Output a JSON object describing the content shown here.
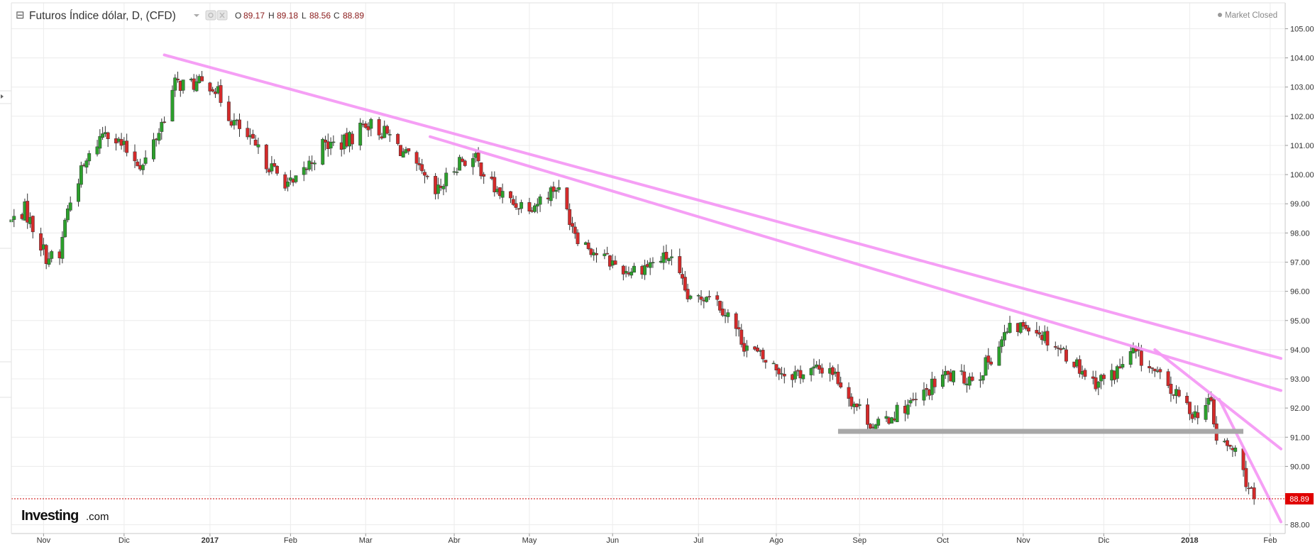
{
  "header": {
    "collapse_symbol": "⊟",
    "instrument": "Futuros Índice dólar, D, (CFD)",
    "ohlc": [
      {
        "label": "O",
        "value": "89.17"
      },
      {
        "label": "H",
        "value": "89.18"
      },
      {
        "label": "L",
        "value": "88.56"
      },
      {
        "label": "C",
        "value": "88.89"
      }
    ],
    "icons": [
      "dropdown-caret-icon",
      "settings-icon",
      "close-icon"
    ],
    "market_status": "Market Closed"
  },
  "watermark": {
    "brand": "Investing",
    "suffix": ".com"
  },
  "colors": {
    "up": "#2ca02c",
    "down": "#d42a2a",
    "wick": "#333333",
    "trendline": "#f59af5",
    "support": "#a8a8a8",
    "price_line": "#cc0000",
    "grid": "#ececec"
  },
  "chart_data": {
    "type": "candlestick",
    "title": "Futuros Índice dólar, D, (CFD)",
    "y_axis": {
      "position": "right",
      "min": 87.7,
      "max": 105.4,
      "ticks": [
        "88.00",
        "89.00",
        "90.00",
        "91.00",
        "92.00",
        "93.00",
        "94.00",
        "95.00",
        "96.00",
        "97.00",
        "98.00",
        "99.00",
        "100.00",
        "101.00",
        "102.00",
        "103.00",
        "104.00",
        "105.00"
      ]
    },
    "x_axis": {
      "start": "2016-10-20",
      "end": "2018-02-05",
      "ticks": [
        {
          "label": "Nov",
          "date": "2016-11-01",
          "bold": false
        },
        {
          "label": "Dic",
          "date": "2016-12-01",
          "bold": false
        },
        {
          "label": "2017",
          "date": "2017-01-02",
          "bold": true
        },
        {
          "label": "Feb",
          "date": "2017-02-01",
          "bold": false
        },
        {
          "label": "Mar",
          "date": "2017-03-01",
          "bold": false
        },
        {
          "label": "Abr",
          "date": "2017-04-03",
          "bold": false
        },
        {
          "label": "May",
          "date": "2017-05-01",
          "bold": false
        },
        {
          "label": "Jun",
          "date": "2017-06-01",
          "bold": false
        },
        {
          "label": "Jul",
          "date": "2017-07-03",
          "bold": false
        },
        {
          "label": "Ago",
          "date": "2017-08-01",
          "bold": false
        },
        {
          "label": "Sep",
          "date": "2017-09-01",
          "bold": false
        },
        {
          "label": "Oct",
          "date": "2017-10-02",
          "bold": false
        },
        {
          "label": "Nov",
          "date": "2017-11-01",
          "bold": false
        },
        {
          "label": "Dic",
          "date": "2017-12-01",
          "bold": false
        },
        {
          "label": "2018",
          "date": "2018-01-02",
          "bold": true
        },
        {
          "label": "Feb",
          "date": "2018-02-01",
          "bold": false
        }
      ]
    },
    "grid": true,
    "last_price": {
      "value": 88.89,
      "label": "88.89"
    },
    "close_path": [
      [
        "2016-10-20",
        98.4
      ],
      [
        "2016-10-25",
        98.8
      ],
      [
        "2016-11-02",
        97.2
      ],
      [
        "2016-11-07",
        97.1
      ],
      [
        "2016-11-09",
        98.5
      ],
      [
        "2016-11-14",
        99.9
      ],
      [
        "2016-11-24",
        101.6
      ],
      [
        "2016-12-01",
        100.9
      ],
      [
        "2016-12-08",
        100.3
      ],
      [
        "2016-12-14",
        101.5
      ],
      [
        "2016-12-20",
        103.1
      ],
      [
        "2017-01-03",
        103.1
      ],
      [
        "2017-01-10",
        101.9
      ],
      [
        "2017-01-18",
        101.0
      ],
      [
        "2017-01-27",
        100.0
      ],
      [
        "2017-02-02",
        99.6
      ],
      [
        "2017-02-13",
        101.0
      ],
      [
        "2017-02-22",
        101.1
      ],
      [
        "2017-03-01",
        101.8
      ],
      [
        "2017-03-10",
        101.3
      ],
      [
        "2017-03-20",
        100.2
      ],
      [
        "2017-03-27",
        99.3
      ],
      [
        "2017-04-05",
        100.5
      ],
      [
        "2017-04-11",
        100.5
      ],
      [
        "2017-04-18",
        99.5
      ],
      [
        "2017-04-25",
        99.0
      ],
      [
        "2017-05-03",
        99.0
      ],
      [
        "2017-05-11",
        99.6
      ],
      [
        "2017-05-19",
        97.9
      ],
      [
        "2017-05-26",
        97.3
      ],
      [
        "2017-06-06",
        96.7
      ],
      [
        "2017-06-14",
        96.9
      ],
      [
        "2017-06-22",
        97.2
      ],
      [
        "2017-06-30",
        95.6
      ],
      [
        "2017-07-07",
        96.0
      ],
      [
        "2017-07-14",
        95.2
      ],
      [
        "2017-07-20",
        94.2
      ],
      [
        "2017-07-28",
        93.6
      ],
      [
        "2017-08-04",
        93.2
      ],
      [
        "2017-08-11",
        93.2
      ],
      [
        "2017-08-21",
        93.4
      ],
      [
        "2017-08-29",
        92.3
      ],
      [
        "2017-09-07",
        91.3
      ],
      [
        "2017-09-15",
        91.9
      ],
      [
        "2017-09-22",
        92.2
      ],
      [
        "2017-10-02",
        93.1
      ],
      [
        "2017-10-10",
        93.0
      ],
      [
        "2017-10-16",
        93.2
      ],
      [
        "2017-10-26",
        94.6
      ],
      [
        "2017-11-03",
        94.9
      ],
      [
        "2017-11-10",
        94.4
      ],
      [
        "2017-11-20",
        93.6
      ],
      [
        "2017-11-27",
        92.9
      ],
      [
        "2017-12-04",
        93.1
      ],
      [
        "2017-12-12",
        93.9
      ],
      [
        "2017-12-19",
        93.3
      ],
      [
        "2017-12-27",
        92.5
      ],
      [
        "2018-01-04",
        91.8
      ],
      [
        "2018-01-10",
        92.2
      ],
      [
        "2018-01-12",
        90.9
      ],
      [
        "2018-01-19",
        90.5
      ],
      [
        "2018-01-24",
        89.3
      ],
      [
        "2018-01-26",
        88.89
      ]
    ]
  },
  "annotations": {
    "trendlines": [
      {
        "name": "trendline-long-a",
        "from": [
          "2016-12-16",
          104.1
        ],
        "to": [
          "2018-02-05",
          93.7
        ]
      },
      {
        "name": "trendline-long-b",
        "from": [
          "2017-03-25",
          101.3
        ],
        "to": [
          "2018-02-05",
          92.6
        ]
      },
      {
        "name": "trendline-steep-a",
        "from": [
          "2017-12-20",
          94.0
        ],
        "to": [
          "2018-02-05",
          90.6
        ]
      },
      {
        "name": "trendline-steep-b",
        "from": [
          "2018-01-13",
          92.3
        ],
        "to": [
          "2018-02-05",
          88.1
        ]
      }
    ],
    "support_line": {
      "from": "2017-08-24",
      "to": "2018-01-22",
      "value": 91.2
    }
  }
}
